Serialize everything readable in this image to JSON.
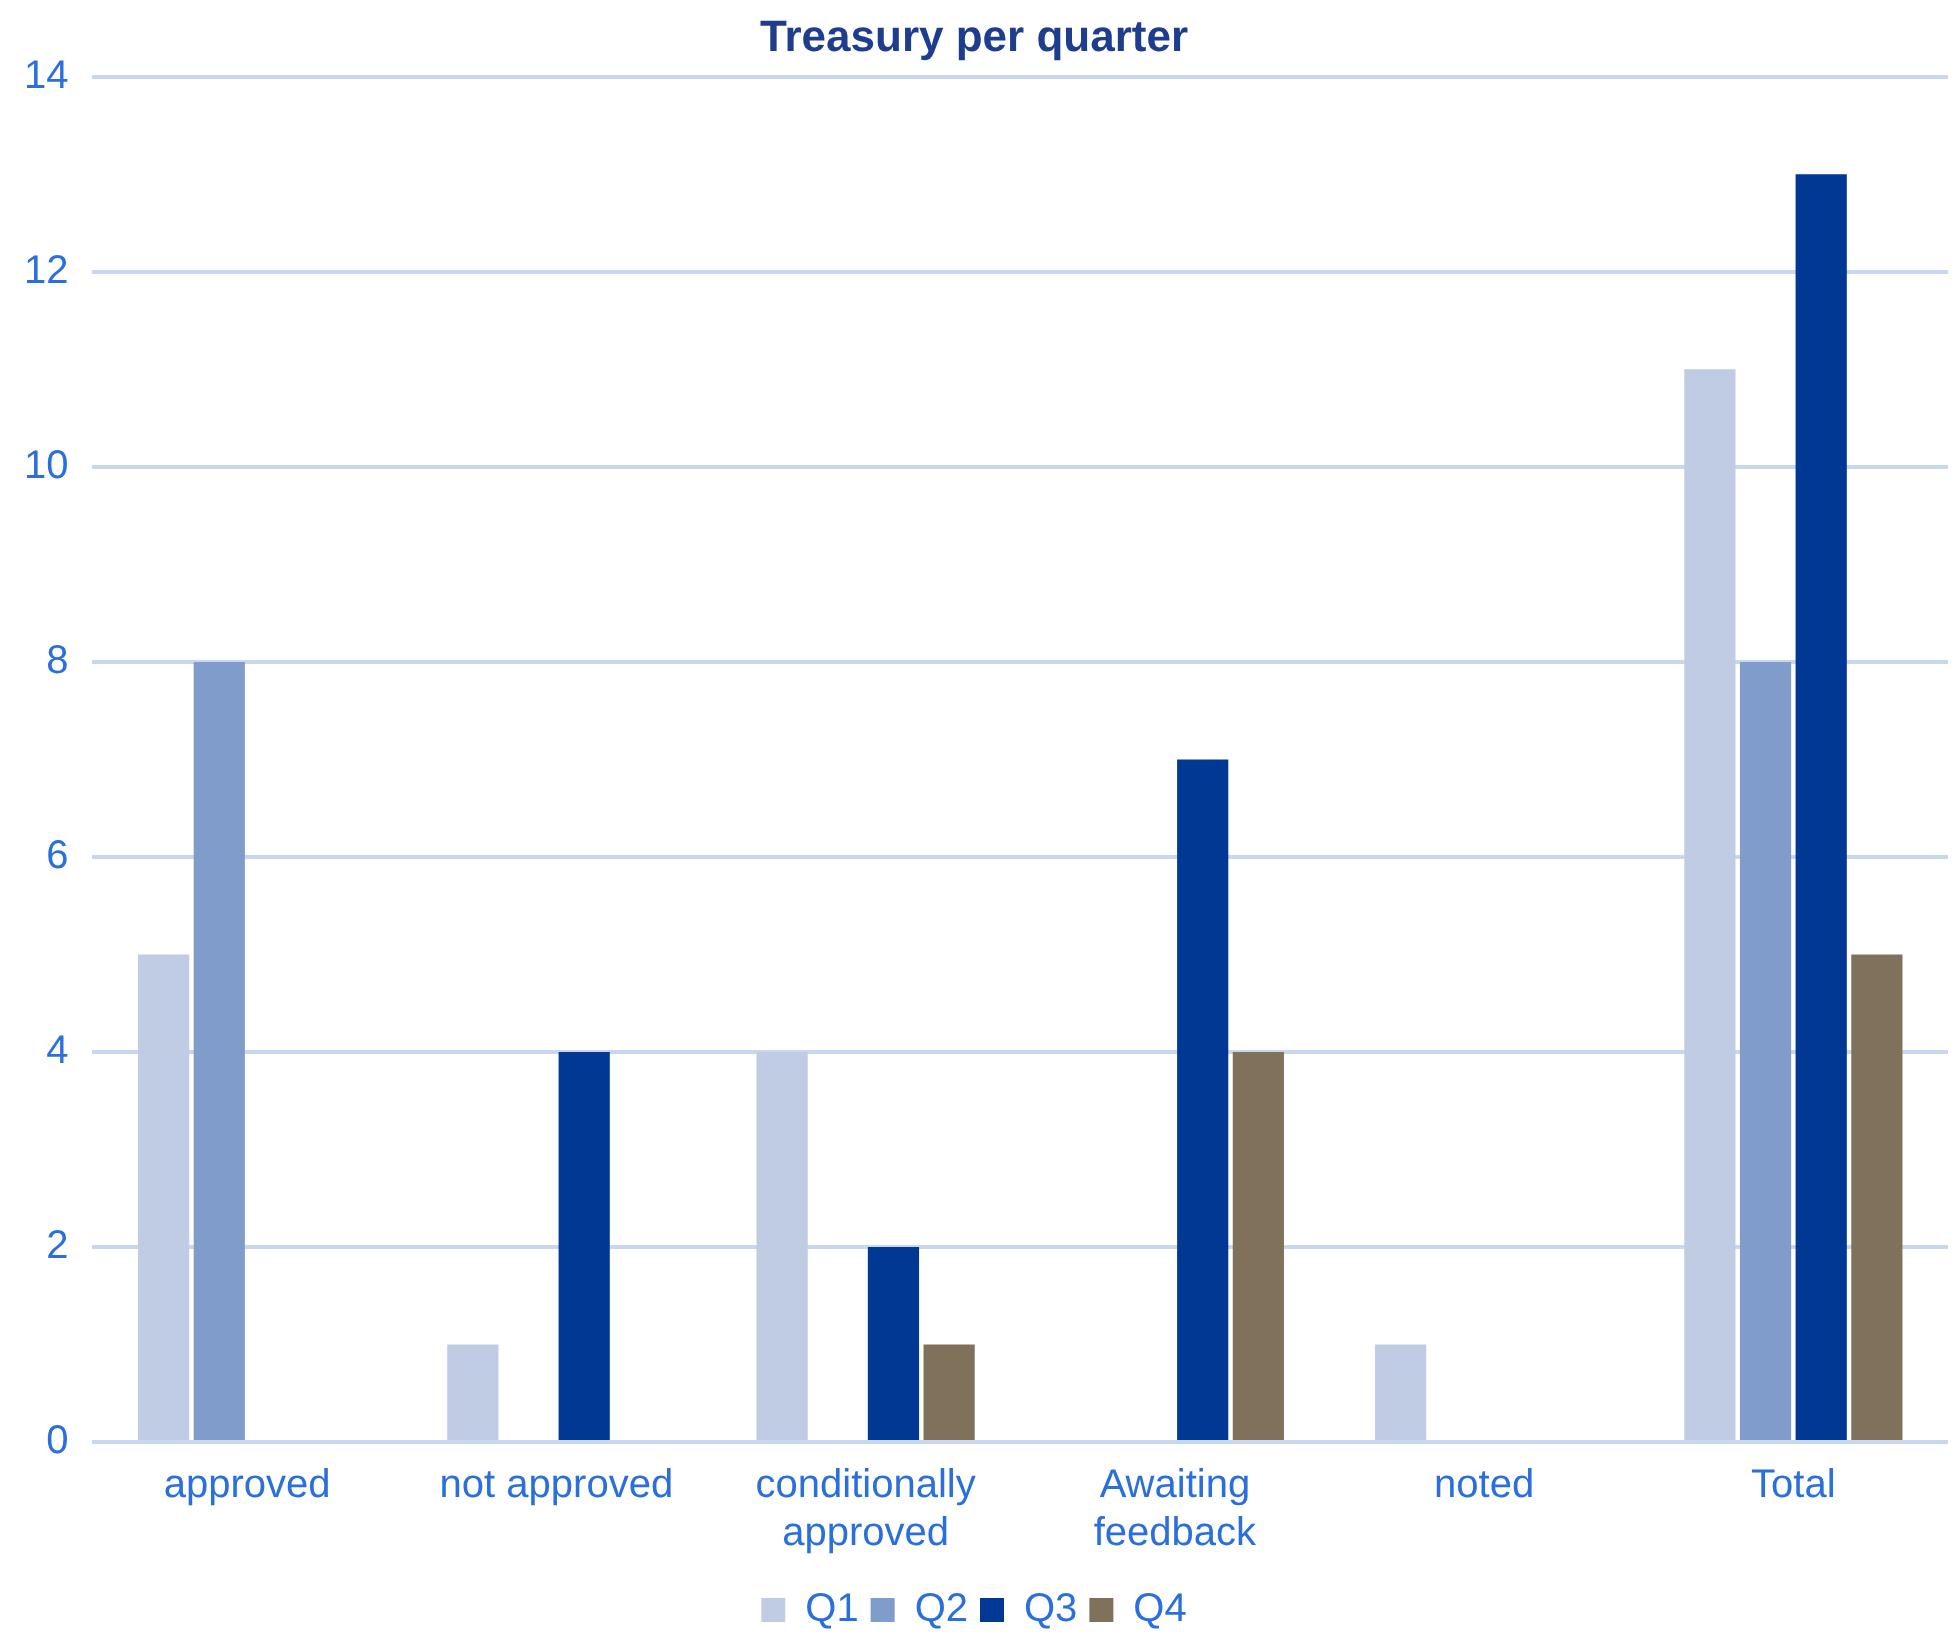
{
  "chart_data": {
    "type": "bar",
    "title": "Treasury per quarter",
    "categories": [
      "approved",
      "not approved",
      "conditionally approved",
      "Awaiting feedback",
      "noted",
      "Total"
    ],
    "series": [
      {
        "name": "Q1",
        "color": "#c0cce4",
        "values": [
          5,
          1,
          4,
          0,
          1,
          11
        ]
      },
      {
        "name": "Q2",
        "color": "#7f9ccb",
        "values": [
          8,
          0,
          0,
          0,
          0,
          8
        ]
      },
      {
        "name": "Q3",
        "color": "#003893",
        "values": [
          0,
          4,
          2,
          7,
          0,
          13
        ]
      },
      {
        "name": "Q4",
        "color": "#80725a",
        "values": [
          0,
          0,
          1,
          4,
          0,
          5
        ]
      }
    ],
    "ylim": [
      0,
      14
    ],
    "yticks": [
      0,
      2,
      4,
      6,
      8,
      10,
      12,
      14
    ],
    "grid": "y",
    "legend": "bottom"
  }
}
